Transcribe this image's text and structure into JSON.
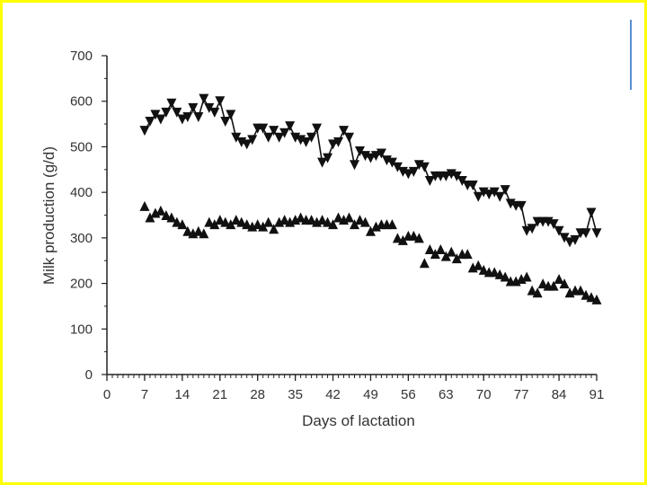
{
  "chart_data": {
    "type": "scatter",
    "title": "",
    "xlabel": "Days of lactation",
    "ylabel": "Milk production (g/d)",
    "xlim": [
      0,
      91
    ],
    "ylim": [
      0,
      700
    ],
    "xticks": [
      0,
      7,
      14,
      21,
      28,
      35,
      42,
      49,
      56,
      63,
      70,
      77,
      84,
      91
    ],
    "yticks": [
      0,
      100,
      200,
      300,
      400,
      500,
      600,
      700
    ],
    "grid": false,
    "legend": "none",
    "series": [
      {
        "marker": "triangle-down",
        "color": "#111111",
        "x": [
          7,
          8,
          9,
          10,
          11,
          12,
          13,
          14,
          15,
          16,
          17,
          18,
          19,
          20,
          21,
          22,
          23,
          24,
          25,
          26,
          27,
          28,
          29,
          30,
          31,
          32,
          33,
          34,
          35,
          36,
          37,
          38,
          39,
          40,
          41,
          42,
          43,
          44,
          45,
          46,
          47,
          48,
          49,
          50,
          51,
          52,
          53,
          54,
          55,
          56,
          57,
          58,
          59,
          60,
          61,
          62,
          63,
          64,
          65,
          66,
          67,
          68,
          69,
          70,
          71,
          72,
          73,
          74,
          75,
          76,
          77,
          78,
          79,
          80,
          81,
          82,
          83,
          84,
          85,
          86,
          87,
          88,
          89,
          90,
          91
        ],
        "y": [
          535,
          555,
          570,
          560,
          575,
          595,
          575,
          560,
          565,
          585,
          565,
          605,
          585,
          575,
          600,
          555,
          570,
          520,
          510,
          505,
          515,
          540,
          540,
          520,
          535,
          520,
          530,
          545,
          520,
          515,
          510,
          520,
          540,
          465,
          475,
          505,
          510,
          535,
          520,
          460,
          490,
          480,
          475,
          480,
          485,
          470,
          465,
          455,
          445,
          440,
          445,
          460,
          455,
          425,
          435,
          435,
          435,
          440,
          435,
          425,
          415,
          415,
          390,
          400,
          395,
          400,
          390,
          405,
          375,
          370,
          370,
          315,
          320,
          335,
          335,
          335,
          330,
          315,
          300,
          290,
          295,
          310,
          310,
          355,
          310
        ]
      },
      {
        "marker": "triangle-up",
        "color": "#111111",
        "x": [
          7,
          8,
          9,
          10,
          11,
          12,
          13,
          14,
          15,
          16,
          17,
          18,
          19,
          20,
          21,
          22,
          23,
          24,
          25,
          26,
          27,
          28,
          29,
          30,
          31,
          32,
          33,
          34,
          35,
          36,
          37,
          38,
          39,
          40,
          41,
          42,
          43,
          44,
          45,
          46,
          47,
          48,
          49,
          50,
          51,
          52,
          53,
          54,
          55,
          56,
          57,
          58,
          59,
          60,
          61,
          62,
          63,
          64,
          65,
          66,
          67,
          68,
          69,
          70,
          71,
          72,
          73,
          74,
          75,
          76,
          77,
          78,
          79,
          80,
          81,
          82,
          83,
          84,
          85,
          86,
          87,
          88,
          89,
          90,
          91
        ],
        "y": [
          370,
          345,
          355,
          360,
          350,
          345,
          335,
          330,
          315,
          310,
          315,
          310,
          335,
          330,
          340,
          335,
          330,
          340,
          335,
          330,
          325,
          330,
          325,
          335,
          320,
          335,
          340,
          335,
          340,
          345,
          340,
          340,
          335,
          340,
          335,
          330,
          345,
          340,
          345,
          330,
          340,
          335,
          315,
          325,
          330,
          330,
          330,
          300,
          295,
          305,
          305,
          300,
          245,
          275,
          265,
          275,
          260,
          270,
          255,
          265,
          265,
          235,
          240,
          230,
          225,
          225,
          220,
          215,
          205,
          205,
          210,
          215,
          185,
          180,
          200,
          195,
          195,
          210,
          200,
          180,
          185,
          185,
          175,
          170,
          165
        ]
      }
    ]
  }
}
